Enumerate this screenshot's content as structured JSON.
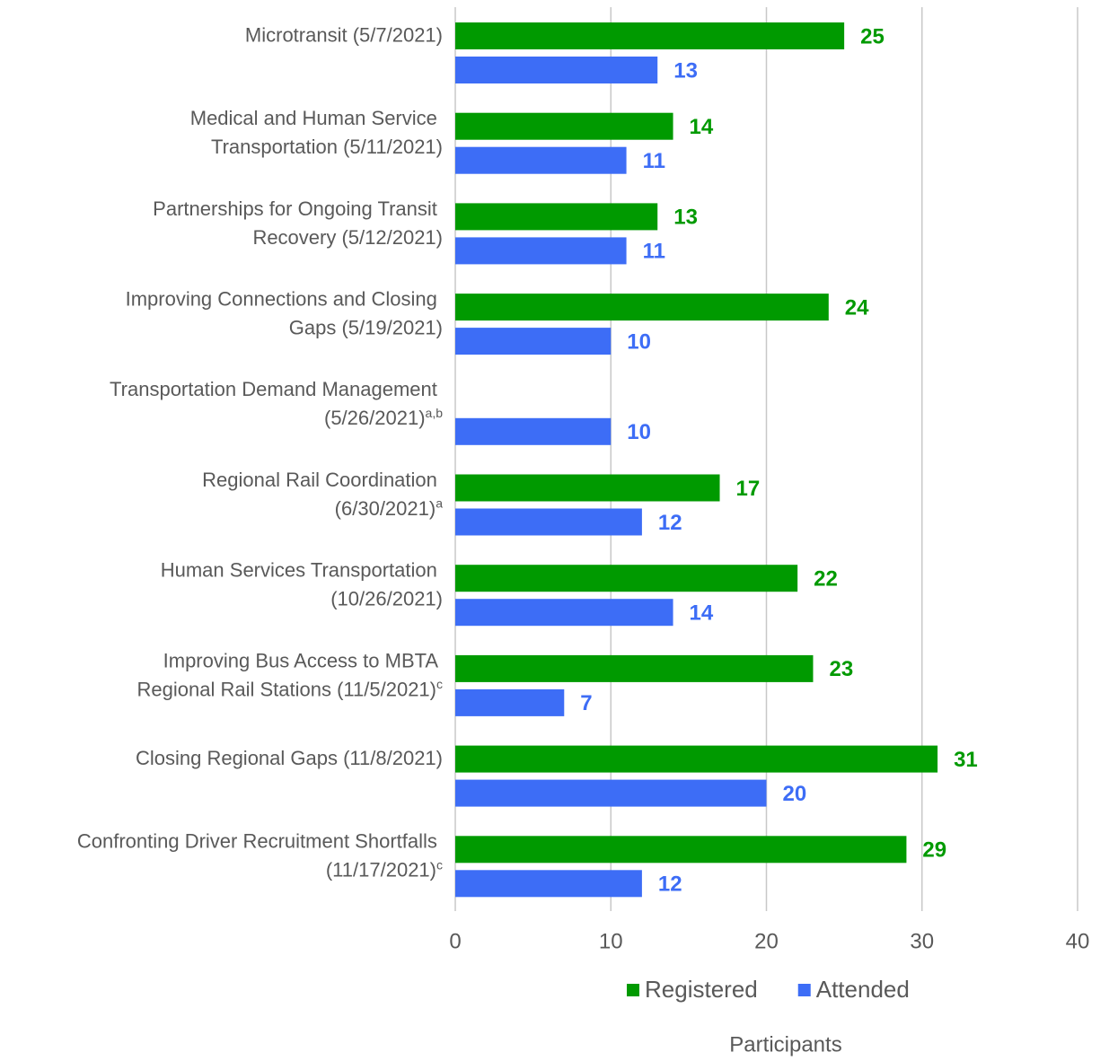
{
  "chart_data": {
    "type": "hbar",
    "categories": [
      "Microtransit (5/7/2021)",
      "Medical and Human Service\nTransportation (5/11/2021)",
      "Partnerships for Ongoing Transit\nRecovery (5/12/2021)",
      "Improving Connections and Closing\nGaps (5/19/2021)",
      "Transportation Demand Management\n(5/26/2021)",
      "Regional Rail Coordination\n(6/30/2021)",
      "Human Services Transportation\n(10/26/2021)",
      "Improving Bus Access to MBTA\nRegional Rail Stations (11/5/2021)",
      "Closing Regional Gaps (11/8/2021)",
      "Confronting Driver Recruitment Shortfalls\n(11/17/2021)"
    ],
    "category_notes": [
      null,
      null,
      null,
      null,
      "a,b",
      "a",
      null,
      "c",
      null,
      "c"
    ],
    "series": [
      {
        "name": "Registered",
        "color": "#009a00",
        "values": [
          25,
          14,
          13,
          24,
          null,
          17,
          22,
          23,
          31,
          29
        ]
      },
      {
        "name": "Attended",
        "color": "#3d6df6",
        "values": [
          13,
          11,
          11,
          10,
          10,
          12,
          14,
          7,
          20,
          12
        ]
      }
    ],
    "xlabel": "Participants",
    "xlim": [
      0,
      40
    ],
    "xticks": [
      0,
      10,
      20,
      30,
      40
    ],
    "grid": true,
    "legend": "bottom"
  }
}
